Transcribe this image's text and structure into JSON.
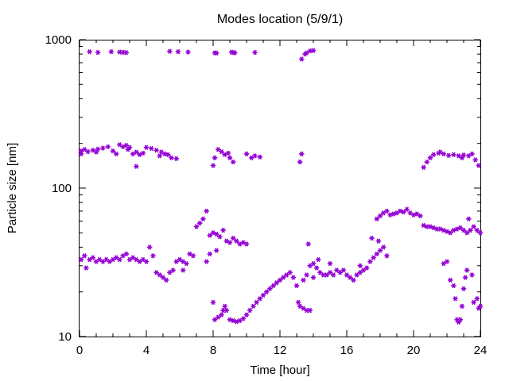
{
  "chart_data": {
    "type": "scatter",
    "title": "Modes location (5/9/1)",
    "xlabel": "Time [hour]",
    "ylabel": "Particle size [nm]",
    "xlim": [
      0,
      24
    ],
    "ylim": [
      10,
      1000
    ],
    "yscale": "log",
    "xticks": [
      "0",
      "4",
      "8",
      "12",
      "16",
      "20",
      "24"
    ],
    "yticks": [
      "10",
      "100",
      "1000"
    ],
    "marker_color": "#9400d3",
    "series": [
      {
        "points": [
          [
            0.6,
            830
          ],
          [
            1.1,
            820
          ],
          [
            1.9,
            830
          ],
          [
            2.4,
            825
          ],
          [
            2.6,
            822
          ],
          [
            2.8,
            818
          ],
          [
            5.4,
            835
          ],
          [
            5.9,
            830
          ],
          [
            6.5,
            825
          ],
          [
            8.1,
            815
          ],
          [
            8.2,
            812
          ],
          [
            9.1,
            825
          ],
          [
            9.2,
            818
          ],
          [
            9.3,
            816
          ],
          [
            10.5,
            820
          ],
          [
            13.3,
            740
          ],
          [
            13.5,
            800
          ],
          [
            13.6,
            815
          ],
          [
            13.8,
            840
          ],
          [
            14.0,
            845
          ],
          [
            0.1,
            178
          ],
          [
            0.3,
            182
          ],
          [
            0.5,
            176
          ],
          [
            0.8,
            180
          ],
          [
            1.1,
            183
          ],
          [
            1.4,
            186
          ],
          [
            1.7,
            190
          ],
          [
            2.0,
            178
          ],
          [
            2.2,
            170
          ],
          [
            2.4,
            196
          ],
          [
            2.6,
            190
          ],
          [
            2.8,
            194
          ],
          [
            3.0,
            188
          ],
          [
            3.2,
            170
          ],
          [
            3.4,
            175
          ],
          [
            3.6,
            168
          ],
          [
            3.8,
            172
          ],
          [
            4.0,
            188
          ],
          [
            4.3,
            185
          ],
          [
            4.6,
            180
          ],
          [
            4.9,
            175
          ],
          [
            5.1,
            170
          ],
          [
            5.3,
            168
          ],
          [
            5.5,
            160
          ],
          [
            5.8,
            158
          ],
          [
            3.4,
            140
          ],
          [
            0.1,
            170
          ],
          [
            1.0,
            175
          ],
          [
            2.9,
            182
          ],
          [
            4.8,
            165
          ],
          [
            8.3,
            182
          ],
          [
            8.5,
            176
          ],
          [
            8.7,
            168
          ],
          [
            8.9,
            172
          ],
          [
            9.0,
            160
          ],
          [
            9.2,
            150
          ],
          [
            8.1,
            160
          ],
          [
            8.0,
            142
          ],
          [
            10.0,
            170
          ],
          [
            10.3,
            160
          ],
          [
            10.5,
            165
          ],
          [
            10.8,
            162
          ],
          [
            13.2,
            150
          ],
          [
            13.3,
            170
          ],
          [
            20.6,
            138
          ],
          [
            20.8,
            150
          ],
          [
            21.0,
            160
          ],
          [
            21.2,
            168
          ],
          [
            21.5,
            172
          ],
          [
            21.8,
            170
          ],
          [
            22.1,
            166
          ],
          [
            22.4,
            168
          ],
          [
            22.7,
            165
          ],
          [
            23.0,
            167
          ],
          [
            23.3,
            165
          ],
          [
            23.5,
            170
          ],
          [
            23.7,
            155
          ],
          [
            23.9,
            142
          ],
          [
            22.9,
            160
          ],
          [
            21.6,
            175
          ],
          [
            0.1,
            33
          ],
          [
            0.3,
            35
          ],
          [
            0.4,
            29
          ],
          [
            0.6,
            33
          ],
          [
            0.8,
            34
          ],
          [
            1.0,
            32
          ],
          [
            1.2,
            33
          ],
          [
            1.4,
            32
          ],
          [
            1.6,
            33
          ],
          [
            1.8,
            32
          ],
          [
            2.0,
            33
          ],
          [
            2.2,
            34
          ],
          [
            2.4,
            33
          ],
          [
            2.6,
            35
          ],
          [
            2.8,
            36
          ],
          [
            3.0,
            33
          ],
          [
            3.2,
            34
          ],
          [
            3.4,
            33
          ],
          [
            3.6,
            32
          ],
          [
            3.8,
            33
          ],
          [
            4.0,
            32
          ],
          [
            4.2,
            40
          ],
          [
            4.4,
            35
          ],
          [
            4.6,
            27
          ],
          [
            4.8,
            26
          ],
          [
            5.0,
            25
          ],
          [
            5.2,
            24
          ],
          [
            5.4,
            27
          ],
          [
            5.6,
            28
          ],
          [
            5.8,
            32
          ],
          [
            6.0,
            33
          ],
          [
            6.2,
            32
          ],
          [
            6.4,
            31
          ],
          [
            6.6,
            36
          ],
          [
            6.8,
            35
          ],
          [
            7.0,
            55
          ],
          [
            7.2,
            58
          ],
          [
            7.4,
            62
          ],
          [
            7.6,
            70
          ],
          [
            7.8,
            48
          ],
          [
            8.0,
            50
          ],
          [
            8.2,
            49
          ],
          [
            8.4,
            47
          ],
          [
            8.6,
            52
          ],
          [
            8.8,
            44
          ],
          [
            9.0,
            43
          ],
          [
            9.2,
            46
          ],
          [
            9.4,
            44
          ],
          [
            9.6,
            42
          ],
          [
            9.8,
            43
          ],
          [
            10.0,
            42
          ],
          [
            7.6,
            32
          ],
          [
            6.2,
            28
          ],
          [
            7.8,
            36
          ],
          [
            8.2,
            38
          ],
          [
            8.0,
            17
          ],
          [
            8.1,
            13
          ],
          [
            8.3,
            13.5
          ],
          [
            8.5,
            14
          ],
          [
            8.6,
            15
          ],
          [
            8.7,
            16
          ],
          [
            8.8,
            15
          ],
          [
            9.0,
            13
          ],
          [
            9.2,
            12.8
          ],
          [
            9.4,
            12.6
          ],
          [
            9.6,
            12.8
          ],
          [
            9.8,
            13.2
          ],
          [
            10.0,
            14
          ],
          [
            10.2,
            15
          ],
          [
            10.4,
            16
          ],
          [
            10.6,
            17
          ],
          [
            10.8,
            18
          ],
          [
            11.0,
            19
          ],
          [
            11.2,
            20
          ],
          [
            11.4,
            21
          ],
          [
            11.6,
            22
          ],
          [
            11.8,
            23
          ],
          [
            12.0,
            24
          ],
          [
            12.2,
            25
          ],
          [
            12.4,
            26
          ],
          [
            12.6,
            27
          ],
          [
            12.8,
            25
          ],
          [
            13.0,
            22
          ],
          [
            13.1,
            17
          ],
          [
            13.2,
            16
          ],
          [
            13.4,
            15.5
          ],
          [
            13.6,
            15
          ],
          [
            13.8,
            15
          ],
          [
            13.4,
            24
          ],
          [
            13.6,
            26
          ],
          [
            13.8,
            30
          ],
          [
            14.0,
            31
          ],
          [
            14.2,
            29
          ],
          [
            14.4,
            27
          ],
          [
            14.6,
            26
          ],
          [
            14.8,
            26
          ],
          [
            15.0,
            27
          ],
          [
            15.2,
            26
          ],
          [
            15.4,
            28
          ],
          [
            15.6,
            27
          ],
          [
            15.8,
            28
          ],
          [
            16.0,
            26
          ],
          [
            16.2,
            25
          ],
          [
            16.4,
            24
          ],
          [
            16.6,
            26
          ],
          [
            16.8,
            27
          ],
          [
            17.0,
            28
          ],
          [
            17.2,
            29
          ],
          [
            17.4,
            32
          ],
          [
            17.6,
            34
          ],
          [
            17.8,
            36
          ],
          [
            18.0,
            38
          ],
          [
            18.2,
            40
          ],
          [
            18.4,
            35
          ],
          [
            17.5,
            46
          ],
          [
            13.7,
            42
          ],
          [
            14.3,
            33
          ],
          [
            14.0,
            25
          ],
          [
            15.0,
            31
          ],
          [
            16.8,
            30
          ],
          [
            17.8,
            62
          ],
          [
            18.0,
            65
          ],
          [
            18.2,
            68
          ],
          [
            18.4,
            70
          ],
          [
            18.6,
            66
          ],
          [
            18.8,
            67
          ],
          [
            19.0,
            68
          ],
          [
            19.2,
            70
          ],
          [
            19.4,
            69
          ],
          [
            19.6,
            72
          ],
          [
            19.8,
            68
          ],
          [
            20.0,
            66
          ],
          [
            20.2,
            67
          ],
          [
            20.4,
            65
          ],
          [
            20.6,
            56
          ],
          [
            20.8,
            55
          ],
          [
            21.0,
            55
          ],
          [
            21.2,
            54
          ],
          [
            21.4,
            53
          ],
          [
            21.6,
            53
          ],
          [
            21.8,
            52
          ],
          [
            22.0,
            51
          ],
          [
            22.2,
            50
          ],
          [
            22.4,
            52
          ],
          [
            22.6,
            53
          ],
          [
            22.8,
            54
          ],
          [
            23.0,
            52
          ],
          [
            23.2,
            50
          ],
          [
            23.4,
            52
          ],
          [
            23.6,
            55
          ],
          [
            23.8,
            52
          ],
          [
            24.0,
            50
          ],
          [
            23.3,
            62
          ],
          [
            17.9,
            44
          ],
          [
            21.8,
            31
          ],
          [
            22.0,
            32
          ],
          [
            22.2,
            24
          ],
          [
            22.4,
            22
          ],
          [
            22.5,
            18
          ],
          [
            22.6,
            13
          ],
          [
            22.7,
            12.5
          ],
          [
            22.8,
            13
          ],
          [
            22.9,
            16
          ],
          [
            23.0,
            21
          ],
          [
            23.1,
            25
          ],
          [
            23.2,
            28
          ],
          [
            23.6,
            17
          ],
          [
            23.8,
            18
          ],
          [
            23.9,
            15.5
          ],
          [
            24.0,
            16
          ],
          [
            23.5,
            26
          ]
        ]
      }
    ]
  }
}
